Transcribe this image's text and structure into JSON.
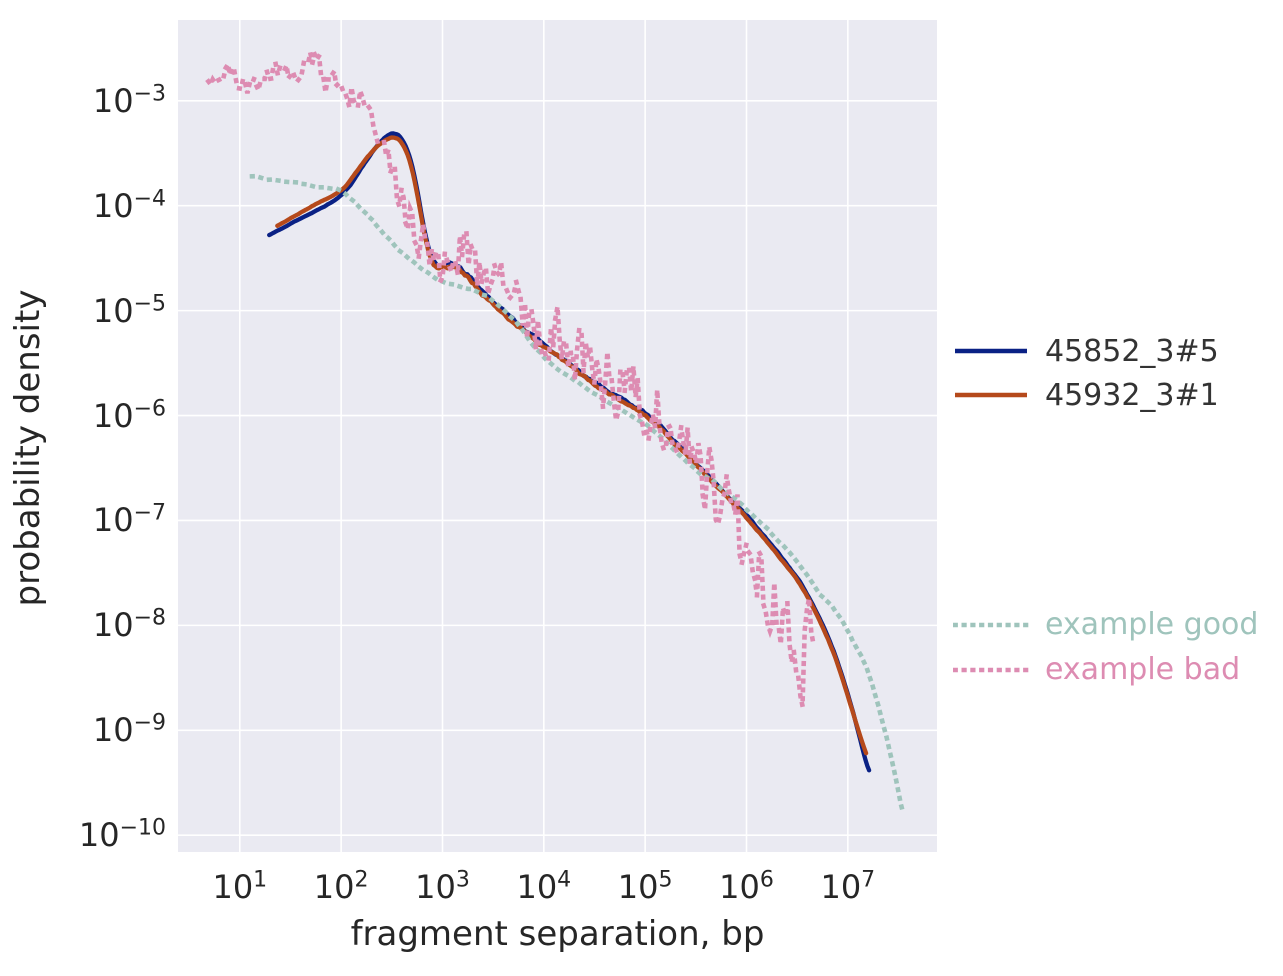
{
  "chart_data": {
    "type": "line",
    "title": "",
    "xlabel": "fragment separation, bp",
    "ylabel": "probability density",
    "x_scale": "log",
    "y_scale": "log",
    "grid": true,
    "xlim_log10": [
      0.39,
      7.88
    ],
    "ylim_log10": [
      -10.16,
      -2.23
    ],
    "x_tick_exponents": [
      1,
      2,
      3,
      4,
      5,
      6,
      7
    ],
    "y_tick_exponents": [
      -3,
      -4,
      -5,
      -6,
      -7,
      -8,
      -9,
      -10
    ],
    "plot_bg_color": "#eaeaf2",
    "grid_color": "#ffffff",
    "text_color": "#262626",
    "legend_groups": [
      {
        "position": "center-right",
        "colored_text": false,
        "series": [
          0,
          1
        ]
      },
      {
        "position": "lower-right",
        "colored_text": true,
        "series": [
          2,
          3
        ]
      }
    ],
    "series": [
      {
        "name": "45852_3#5",
        "color": "#0a2185",
        "style": "solid",
        "points_log10": [
          [
            1.29,
            -4.28
          ],
          [
            1.45,
            -4.2
          ],
          [
            1.6,
            -4.12
          ],
          [
            1.75,
            -4.05
          ],
          [
            1.9,
            -3.97
          ],
          [
            2.0,
            -3.9
          ],
          [
            2.1,
            -3.79
          ],
          [
            2.2,
            -3.64
          ],
          [
            2.3,
            -3.5
          ],
          [
            2.38,
            -3.4
          ],
          [
            2.46,
            -3.33
          ],
          [
            2.52,
            -3.31
          ],
          [
            2.58,
            -3.34
          ],
          [
            2.64,
            -3.44
          ],
          [
            2.7,
            -3.62
          ],
          [
            2.76,
            -3.9
          ],
          [
            2.82,
            -4.22
          ],
          [
            2.88,
            -4.45
          ],
          [
            2.94,
            -4.55
          ],
          [
            3.0,
            -4.58
          ],
          [
            3.08,
            -4.56
          ],
          [
            3.16,
            -4.6
          ],
          [
            3.26,
            -4.68
          ],
          [
            3.4,
            -4.82
          ],
          [
            3.6,
            -5.0
          ],
          [
            3.8,
            -5.17
          ],
          [
            4.0,
            -5.32
          ],
          [
            4.25,
            -5.5
          ],
          [
            4.5,
            -5.68
          ],
          [
            4.75,
            -5.83
          ],
          [
            5.0,
            -5.98
          ],
          [
            5.25,
            -6.2
          ],
          [
            5.5,
            -6.45
          ],
          [
            5.75,
            -6.7
          ],
          [
            6.0,
            -6.95
          ],
          [
            6.2,
            -7.18
          ],
          [
            6.4,
            -7.42
          ],
          [
            6.55,
            -7.62
          ],
          [
            6.7,
            -7.89
          ],
          [
            6.85,
            -8.22
          ],
          [
            6.95,
            -8.5
          ],
          [
            7.05,
            -8.82
          ],
          [
            7.12,
            -9.08
          ],
          [
            7.18,
            -9.3
          ],
          [
            7.21,
            -9.38
          ]
        ],
        "noise": {
          "seed": 11,
          "samples": 340,
          "smooth": 0.8,
          "gain": 2.0,
          "amp": [
            [
              1.29,
              0.004
            ],
            [
              2.85,
              0.008
            ],
            [
              3.0,
              0.045
            ],
            [
              3.35,
              0.03
            ],
            [
              4.0,
              0.025
            ],
            [
              5.0,
              0.02
            ],
            [
              6.0,
              0.012
            ],
            [
              6.8,
              0.006
            ],
            [
              7.21,
              0.003
            ]
          ]
        }
      },
      {
        "name": "45932_3#1",
        "color": "#b5491b",
        "style": "solid",
        "points_log10": [
          [
            1.37,
            -4.19
          ],
          [
            1.5,
            -4.12
          ],
          [
            1.65,
            -4.04
          ],
          [
            1.8,
            -3.96
          ],
          [
            1.95,
            -3.89
          ],
          [
            2.05,
            -3.81
          ],
          [
            2.15,
            -3.68
          ],
          [
            2.25,
            -3.55
          ],
          [
            2.35,
            -3.44
          ],
          [
            2.44,
            -3.37
          ],
          [
            2.52,
            -3.35
          ],
          [
            2.58,
            -3.38
          ],
          [
            2.64,
            -3.48
          ],
          [
            2.7,
            -3.66
          ],
          [
            2.76,
            -3.94
          ],
          [
            2.82,
            -4.26
          ],
          [
            2.88,
            -4.49
          ],
          [
            2.94,
            -4.59
          ],
          [
            3.0,
            -4.61
          ],
          [
            3.08,
            -4.59
          ],
          [
            3.16,
            -4.62
          ],
          [
            3.26,
            -4.7
          ],
          [
            3.4,
            -4.84
          ],
          [
            3.6,
            -5.02
          ],
          [
            3.8,
            -5.19
          ],
          [
            4.0,
            -5.34
          ],
          [
            4.25,
            -5.52
          ],
          [
            4.5,
            -5.7
          ],
          [
            4.75,
            -5.85
          ],
          [
            5.0,
            -6.0
          ],
          [
            5.25,
            -6.22
          ],
          [
            5.5,
            -6.47
          ],
          [
            5.75,
            -6.72
          ],
          [
            6.0,
            -6.97
          ],
          [
            6.2,
            -7.2
          ],
          [
            6.4,
            -7.44
          ],
          [
            6.55,
            -7.64
          ],
          [
            6.7,
            -7.91
          ],
          [
            6.85,
            -8.24
          ],
          [
            6.95,
            -8.52
          ],
          [
            7.05,
            -8.83
          ],
          [
            7.12,
            -9.05
          ],
          [
            7.18,
            -9.22
          ]
        ],
        "noise": {
          "seed": 23,
          "samples": 340,
          "smooth": 0.8,
          "gain": 2.0,
          "amp": [
            [
              1.37,
              0.004
            ],
            [
              2.85,
              0.008
            ],
            [
              3.0,
              0.04
            ],
            [
              3.35,
              0.028
            ],
            [
              4.0,
              0.024
            ],
            [
              5.0,
              0.02
            ],
            [
              6.0,
              0.012
            ],
            [
              6.8,
              0.006
            ],
            [
              7.18,
              0.003
            ]
          ]
        }
      },
      {
        "name": "example good",
        "color": "#9fc4bc",
        "style": "dotted",
        "points_log10": [
          [
            1.12,
            -3.72
          ],
          [
            1.3,
            -3.75
          ],
          [
            1.5,
            -3.78
          ],
          [
            1.7,
            -3.81
          ],
          [
            1.85,
            -3.83
          ],
          [
            2.0,
            -3.86
          ],
          [
            2.1,
            -3.94
          ],
          [
            2.25,
            -4.08
          ],
          [
            2.4,
            -4.24
          ],
          [
            2.55,
            -4.4
          ],
          [
            2.7,
            -4.53
          ],
          [
            2.85,
            -4.64
          ],
          [
            3.0,
            -4.72
          ],
          [
            3.15,
            -4.77
          ],
          [
            3.3,
            -4.8
          ],
          [
            3.5,
            -4.9
          ],
          [
            3.7,
            -5.08
          ],
          [
            3.9,
            -5.33
          ],
          [
            4.1,
            -5.53
          ],
          [
            4.3,
            -5.66
          ],
          [
            4.5,
            -5.78
          ],
          [
            4.75,
            -5.93
          ],
          [
            5.0,
            -6.08
          ],
          [
            5.25,
            -6.3
          ],
          [
            5.5,
            -6.52
          ],
          [
            5.7,
            -6.65
          ],
          [
            6.0,
            -6.9
          ],
          [
            6.3,
            -7.18
          ],
          [
            6.5,
            -7.4
          ],
          [
            6.7,
            -7.66
          ],
          [
            6.9,
            -7.9
          ],
          [
            7.05,
            -8.15
          ],
          [
            7.2,
            -8.45
          ],
          [
            7.35,
            -8.95
          ],
          [
            7.45,
            -9.35
          ],
          [
            7.52,
            -9.68
          ],
          [
            7.55,
            -9.8
          ]
        ],
        "noise": {
          "seed": 37,
          "samples": 230,
          "smooth": 0.75,
          "gain": 1.5,
          "amp": [
            [
              1.12,
              0.015
            ],
            [
              7.55,
              0.02
            ]
          ]
        }
      },
      {
        "name": "example bad",
        "color": "#dd8cb2",
        "style": "dotted",
        "points_log10": [
          [
            0.69,
            -2.76
          ],
          [
            0.85,
            -2.74
          ],
          [
            1.0,
            -2.8
          ],
          [
            1.12,
            -2.88
          ],
          [
            1.25,
            -2.78
          ],
          [
            1.4,
            -2.7
          ],
          [
            1.55,
            -2.76
          ],
          [
            1.65,
            -2.68
          ],
          [
            1.75,
            -2.6
          ],
          [
            1.85,
            -2.85
          ],
          [
            1.95,
            -2.8
          ],
          [
            2.05,
            -2.95
          ],
          [
            2.15,
            -2.88
          ],
          [
            2.25,
            -2.95
          ],
          [
            2.33,
            -3.12
          ],
          [
            2.42,
            -3.45
          ],
          [
            2.52,
            -3.78
          ],
          [
            2.62,
            -4.05
          ],
          [
            2.72,
            -4.22
          ],
          [
            2.82,
            -4.32
          ],
          [
            2.92,
            -4.5
          ],
          [
            3.0,
            -4.6
          ],
          [
            3.1,
            -4.5
          ],
          [
            3.2,
            -4.45
          ],
          [
            3.35,
            -4.55
          ],
          [
            3.5,
            -4.72
          ],
          [
            3.7,
            -4.92
          ],
          [
            3.9,
            -5.08
          ],
          [
            4.1,
            -5.22
          ],
          [
            4.3,
            -5.4
          ],
          [
            4.5,
            -5.55
          ],
          [
            4.7,
            -5.7
          ],
          [
            4.9,
            -5.82
          ],
          [
            5.1,
            -5.95
          ],
          [
            5.3,
            -6.12
          ],
          [
            5.5,
            -6.4
          ],
          [
            5.65,
            -6.6
          ],
          [
            5.8,
            -6.85
          ],
          [
            5.95,
            -7.1
          ],
          [
            6.1,
            -7.4
          ],
          [
            6.25,
            -7.65
          ],
          [
            6.4,
            -7.9
          ],
          [
            6.5,
            -8.05
          ],
          [
            6.6,
            -8.25
          ],
          [
            6.66,
            -8.35
          ]
        ],
        "noise": {
          "seed": 51,
          "samples": 280,
          "smooth": 0.35,
          "gain": 2.4,
          "amp": [
            [
              0.69,
              0.05
            ],
            [
              1.8,
              0.06
            ],
            [
              2.3,
              0.09
            ],
            [
              2.9,
              0.13
            ],
            [
              3.6,
              0.18
            ],
            [
              5.4,
              0.18
            ],
            [
              6.0,
              0.24
            ],
            [
              6.66,
              0.28
            ]
          ]
        }
      }
    ]
  }
}
